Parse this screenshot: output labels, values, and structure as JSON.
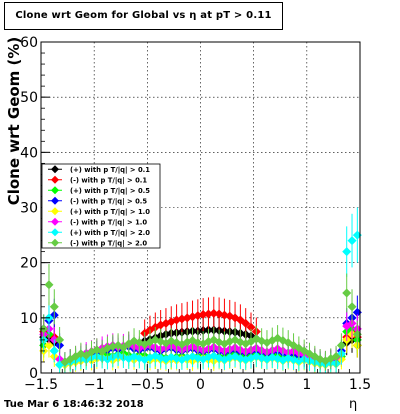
{
  "chart_data": {
    "type": "scatter",
    "title": "Clone wrt Geom for Global vs   η at pT > 0.11",
    "xlabel": "η",
    "ylabel": "Clone wrt Geom (%)",
    "xlim": [
      -1.5,
      1.5
    ],
    "ylim": [
      0,
      60
    ],
    "x_ticks": [
      -1.5,
      -1,
      -0.5,
      0,
      0.5,
      1,
      1.5
    ],
    "y_ticks": [
      0,
      10,
      20,
      30,
      40,
      50,
      60
    ],
    "grid": true,
    "legend_position": "left-middle",
    "series": [
      {
        "name": "(+) with p T/|q| > 0.1",
        "color": "#000000",
        "x": [
          -1.475,
          -1.425,
          -1.375,
          -0.525,
          -0.475,
          -0.425,
          -0.375,
          -0.325,
          -0.275,
          -0.225,
          -0.175,
          -0.125,
          -0.075,
          -0.025,
          0.025,
          0.075,
          0.125,
          0.175,
          0.225,
          0.275,
          0.325,
          0.375,
          0.425,
          0.475,
          0.525,
          1.375,
          1.425,
          1.475
        ],
        "y": [
          6.5,
          6.0,
          5.5,
          5.8,
          6.1,
          6.4,
          6.7,
          7.0,
          7.2,
          7.3,
          7.4,
          7.5,
          7.6,
          7.6,
          7.7,
          7.8,
          7.8,
          7.7,
          7.6,
          7.5,
          7.4,
          7.2,
          7.0,
          6.7,
          6.2,
          5.5,
          6.0,
          5.0
        ]
      },
      {
        "name": "(-) with p T/|q| > 0.1",
        "color": "#ff0000",
        "x": [
          -1.475,
          -1.425,
          -1.375,
          -0.525,
          -0.475,
          -0.425,
          -0.375,
          -0.325,
          -0.275,
          -0.225,
          -0.175,
          -0.125,
          -0.075,
          -0.025,
          0.025,
          0.075,
          0.125,
          0.175,
          0.225,
          0.275,
          0.325,
          0.375,
          0.425,
          0.475,
          0.525,
          1.375,
          1.425,
          1.475
        ],
        "y": [
          7.5,
          7.0,
          6.5,
          7.2,
          7.8,
          8.3,
          8.7,
          9.0,
          9.3,
          9.6,
          9.8,
          10.0,
          10.2,
          10.4,
          10.6,
          10.7,
          10.8,
          10.7,
          10.5,
          10.3,
          10.0,
          9.6,
          9.0,
          8.3,
          7.5,
          6.5,
          7.5,
          6.5
        ]
      },
      {
        "name": "(+) with p T/|q| > 0.5",
        "color": "#00ff00",
        "x": [
          -1.475,
          -1.425,
          -1.375,
          -1.325,
          -1.275,
          -1.225,
          -1.175,
          -1.125,
          -1.075,
          -1.025,
          -0.975,
          -0.925,
          -0.875,
          -0.825,
          -0.775,
          -0.725,
          -0.675,
          -0.625,
          -0.575,
          -0.525,
          -0.475,
          -0.425,
          -0.375,
          -0.325,
          -0.275,
          -0.225,
          -0.175,
          -0.125,
          -0.075,
          -0.025,
          0.025,
          0.075,
          0.125,
          0.175,
          0.225,
          0.275,
          0.325,
          0.375,
          0.425,
          0.475,
          0.525,
          0.575,
          0.625,
          0.675,
          0.725,
          0.775,
          0.825,
          0.875,
          0.925,
          0.975,
          1.025,
          1.075,
          1.125,
          1.175,
          1.225,
          1.275,
          1.325,
          1.375,
          1.425,
          1.475
        ],
        "y": [
          5.0,
          7.0,
          4.0,
          1.5,
          1.8,
          2.2,
          2.5,
          2.4,
          2.8,
          3.0,
          3.2,
          3.5,
          3.3,
          3.0,
          3.4,
          3.6,
          3.2,
          2.9,
          3.3,
          3.1,
          2.8,
          2.6,
          3.0,
          2.7,
          2.5,
          2.9,
          3.1,
          2.8,
          2.6,
          3.0,
          3.3,
          2.9,
          2.7,
          3.0,
          2.8,
          3.2,
          3.5,
          3.1,
          2.8,
          3.3,
          3.6,
          3.2,
          2.9,
          3.4,
          3.0,
          2.7,
          3.1,
          2.8,
          2.5,
          2.9,
          2.6,
          2.2,
          2.0,
          1.8,
          2.3,
          2.0,
          3.0,
          7.5,
          8.0,
          6.0
        ]
      },
      {
        "name": "(-) with p T/|q| > 0.5",
        "color": "#0000ff",
        "x": [
          -1.475,
          -1.425,
          -1.375,
          -1.325,
          -1.275,
          -1.225,
          -1.175,
          -1.125,
          -1.075,
          -1.025,
          -0.975,
          -0.925,
          -0.875,
          -0.825,
          -0.775,
          -0.725,
          -0.675,
          -0.625,
          -0.575,
          -0.525,
          -0.475,
          -0.425,
          -0.375,
          -0.325,
          -0.275,
          -0.225,
          -0.175,
          -0.125,
          -0.075,
          -0.025,
          0.025,
          0.075,
          0.125,
          0.175,
          0.225,
          0.275,
          0.325,
          0.375,
          0.425,
          0.475,
          0.525,
          0.575,
          0.625,
          0.675,
          0.725,
          0.775,
          0.825,
          0.875,
          0.925,
          0.975,
          1.025,
          1.075,
          1.125,
          1.175,
          1.225,
          1.275,
          1.325,
          1.375,
          1.425,
          1.475
        ],
        "y": [
          8.0,
          9.5,
          10.5,
          5.0,
          2.0,
          2.4,
          2.7,
          3.0,
          3.3,
          3.5,
          3.8,
          4.0,
          4.2,
          4.5,
          4.3,
          4.6,
          4.8,
          4.4,
          4.2,
          4.5,
          4.7,
          4.3,
          4.0,
          4.4,
          4.6,
          4.2,
          4.0,
          4.3,
          4.5,
          4.1,
          3.9,
          4.2,
          4.4,
          4.0,
          3.8,
          4.1,
          4.3,
          3.9,
          3.7,
          4.0,
          4.2,
          3.9,
          3.6,
          3.9,
          4.1,
          3.7,
          3.4,
          3.6,
          3.2,
          3.0,
          2.8,
          2.5,
          2.2,
          2.0,
          2.3,
          2.6,
          4.0,
          9.0,
          10.0,
          11.0
        ]
      },
      {
        "name": "(+) with p T/|q| > 1.0",
        "color": "#ffff00",
        "x": [
          -1.475,
          -1.425,
          -1.375,
          -1.325,
          -1.275,
          -1.225,
          -1.175,
          -1.125,
          -1.075,
          -1.025,
          -0.975,
          -0.925,
          -0.875,
          -0.825,
          -0.775,
          -0.725,
          -0.675,
          -0.625,
          -0.575,
          -0.525,
          -0.475,
          -0.425,
          -0.375,
          -0.325,
          -0.275,
          -0.225,
          -0.175,
          -0.125,
          -0.075,
          -0.025,
          0.025,
          0.075,
          0.125,
          0.175,
          0.225,
          0.275,
          0.325,
          0.375,
          0.425,
          0.475,
          0.525,
          0.575,
          0.625,
          0.675,
          0.725,
          0.775,
          0.825,
          0.875,
          0.925,
          0.975,
          1.025,
          1.075,
          1.125,
          1.175,
          1.225,
          1.275,
          1.325,
          1.375,
          1.425,
          1.475
        ],
        "y": [
          4.0,
          5.0,
          3.0,
          1.5,
          1.5,
          1.8,
          2.0,
          2.2,
          2.5,
          2.3,
          2.6,
          2.8,
          2.5,
          2.3,
          2.7,
          2.9,
          2.6,
          2.4,
          2.8,
          2.5,
          2.3,
          2.6,
          2.4,
          2.2,
          2.5,
          2.3,
          2.6,
          2.4,
          2.2,
          2.5,
          2.7,
          2.4,
          2.2,
          2.5,
          2.3,
          2.6,
          2.8,
          2.5,
          2.3,
          2.6,
          2.9,
          2.6,
          2.4,
          2.7,
          2.5,
          2.2,
          2.5,
          2.3,
          2.0,
          2.3,
          2.1,
          1.8,
          1.6,
          1.5,
          1.8,
          1.6,
          2.5,
          6.0,
          7.0,
          5.0
        ]
      },
      {
        "name": "(-) with p T/|q| > 1.0",
        "color": "#ff00ff",
        "x": [
          -1.475,
          -1.425,
          -1.375,
          -1.325,
          -1.275,
          -1.225,
          -1.175,
          -1.125,
          -1.075,
          -1.025,
          -0.975,
          -0.925,
          -0.875,
          -0.825,
          -0.775,
          -0.725,
          -0.675,
          -0.625,
          -0.575,
          -0.525,
          -0.475,
          -0.425,
          -0.375,
          -0.325,
          -0.275,
          -0.225,
          -0.175,
          -0.125,
          -0.075,
          -0.025,
          0.025,
          0.075,
          0.125,
          0.175,
          0.225,
          0.275,
          0.325,
          0.375,
          0.425,
          0.475,
          0.525,
          0.575,
          0.625,
          0.675,
          0.725,
          0.775,
          0.825,
          0.875,
          0.925,
          0.975,
          1.025,
          1.075,
          1.125,
          1.175,
          1.225,
          1.275,
          1.325,
          1.375,
          1.425,
          1.475
        ],
        "y": [
          7.0,
          8.0,
          6.0,
          2.5,
          2.0,
          2.5,
          3.0,
          3.3,
          3.6,
          3.9,
          4.2,
          4.5,
          4.8,
          5.0,
          4.7,
          4.9,
          5.2,
          4.8,
          4.5,
          4.8,
          5.0,
          4.6,
          4.3,
          4.6,
          4.9,
          4.5,
          4.2,
          4.5,
          4.8,
          4.4,
          4.1,
          4.4,
          4.7,
          4.3,
          4.0,
          4.3,
          4.6,
          4.2,
          3.9,
          4.2,
          4.5,
          4.1,
          3.8,
          4.1,
          4.4,
          4.0,
          3.7,
          4.0,
          3.6,
          3.3,
          3.0,
          2.7,
          2.4,
          2.2,
          2.5,
          2.8,
          3.5,
          8.5,
          9.0,
          8.0
        ]
      },
      {
        "name": "(+) with p T/|q| > 2.0",
        "color": "#00ffff",
        "x": [
          -1.475,
          -1.425,
          -1.375,
          -1.325,
          -1.275,
          -1.225,
          -1.175,
          -1.125,
          -1.075,
          -1.025,
          -0.975,
          -0.925,
          -0.875,
          -0.825,
          -0.775,
          -0.725,
          -0.675,
          -0.625,
          -0.575,
          -0.525,
          -0.475,
          -0.425,
          -0.375,
          -0.325,
          -0.275,
          -0.225,
          -0.175,
          -0.125,
          -0.075,
          -0.025,
          0.025,
          0.075,
          0.125,
          0.175,
          0.225,
          0.275,
          0.325,
          0.375,
          0.425,
          0.475,
          0.525,
          0.575,
          0.625,
          0.675,
          0.725,
          0.775,
          0.825,
          0.875,
          0.925,
          0.975,
          1.025,
          1.075,
          1.125,
          1.175,
          1.225,
          1.275,
          1.325,
          1.375,
          1.425,
          1.475
        ],
        "y": [
          6.0,
          10.0,
          4.0,
          1.5,
          1.8,
          2.0,
          2.3,
          2.6,
          2.4,
          2.8,
          3.0,
          2.7,
          2.5,
          2.9,
          3.2,
          2.8,
          2.6,
          3.0,
          2.7,
          2.4,
          2.8,
          3.1,
          2.7,
          2.5,
          2.9,
          2.6,
          2.4,
          2.8,
          3.0,
          2.7,
          2.5,
          2.9,
          3.1,
          2.7,
          2.4,
          2.8,
          3.0,
          2.6,
          2.4,
          2.7,
          3.0,
          2.7,
          2.5,
          2.8,
          2.6,
          2.3,
          2.7,
          2.4,
          2.2,
          2.5,
          2.2,
          2.0,
          1.8,
          1.6,
          1.9,
          1.7,
          3.5,
          22.0,
          24.0,
          25.0
        ]
      },
      {
        "name": "(-) with p T/|q| > 2.0",
        "color": "#66cc44",
        "x": [
          -1.475,
          -1.425,
          -1.375,
          -1.325,
          -1.275,
          -1.225,
          -1.175,
          -1.125,
          -1.075,
          -1.025,
          -0.975,
          -0.925,
          -0.875,
          -0.825,
          -0.775,
          -0.725,
          -0.675,
          -0.625,
          -0.575,
          -0.525,
          -0.475,
          -0.425,
          -0.375,
          -0.325,
          -0.275,
          -0.225,
          -0.175,
          -0.125,
          -0.075,
          -0.025,
          0.025,
          0.075,
          0.125,
          0.175,
          0.225,
          0.275,
          0.325,
          0.375,
          0.425,
          0.475,
          0.525,
          0.575,
          0.625,
          0.675,
          0.725,
          0.775,
          0.825,
          0.875,
          0.925,
          0.975,
          1.025,
          1.075,
          1.125,
          1.175,
          1.225,
          1.275,
          1.325,
          1.375,
          1.425,
          1.475
        ],
        "y": [
          8.0,
          16.0,
          12.0,
          6.0,
          2.0,
          2.5,
          3.0,
          3.5,
          3.2,
          3.8,
          4.2,
          3.9,
          4.5,
          4.8,
          5.0,
          4.6,
          5.3,
          5.8,
          5.5,
          5.2,
          5.6,
          6.0,
          5.7,
          5.4,
          5.8,
          5.5,
          5.2,
          5.6,
          5.9,
          5.5,
          5.3,
          5.7,
          6.0,
          5.6,
          5.3,
          5.7,
          6.0,
          5.6,
          5.3,
          5.7,
          6.2,
          5.8,
          5.5,
          5.9,
          6.3,
          5.9,
          5.5,
          5.0,
          4.5,
          4.0,
          3.5,
          3.0,
          2.5,
          2.2,
          2.6,
          3.0,
          5.0,
          14.5,
          12.0,
          7.0
        ]
      }
    ]
  },
  "footer": {
    "timestamp": "Tue Mar  6 18:46:32 2018"
  }
}
